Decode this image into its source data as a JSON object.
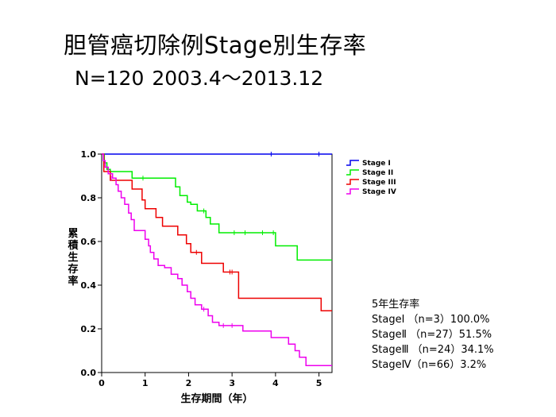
{
  "slide": {
    "title": "胆管癌切除例Stage別生存率",
    "subtitle": "N=120  2003.4～2013.12"
  },
  "summary": {
    "heading": "5年生存率",
    "rows": [
      "StageⅠ （n=3）100.0%",
      "StageⅡ （n=27）51.5%",
      "StageⅢ （n=24）34.1%",
      "StageⅣ（n=66）3.2%"
    ]
  },
  "chart_data": {
    "type": "line",
    "step": true,
    "xlabel": "生存期間（年）",
    "ylabel": "累積生存率",
    "xlim": [
      0,
      5.3
    ],
    "ylim": [
      0,
      1
    ],
    "xticks": [
      0,
      1,
      2,
      3,
      4,
      5
    ],
    "yticks": [
      0.0,
      0.2,
      0.4,
      0.6,
      0.8,
      1.0
    ],
    "xtick_labels": [
      "0",
      "1",
      "2",
      "3",
      "4",
      "5"
    ],
    "ytick_labels": [
      "0.0",
      "0.2",
      "0.4",
      "0.6",
      "0.8",
      "1.0"
    ],
    "grid": false,
    "legend_position": "top-right",
    "series": [
      {
        "name": "Stage I",
        "color": "#0000ee",
        "steps": [
          [
            0,
            1.0
          ],
          [
            5.3,
            1.0
          ]
        ],
        "censored": [
          [
            3.9,
            1.0
          ],
          [
            5.0,
            1.0
          ]
        ]
      },
      {
        "name": "Stage II",
        "color": "#00ee00",
        "steps": [
          [
            0,
            1.0
          ],
          [
            0.06,
            0.96
          ],
          [
            0.12,
            0.93
          ],
          [
            0.2,
            0.92
          ],
          [
            0.7,
            0.89
          ],
          [
            1.7,
            0.85
          ],
          [
            1.8,
            0.81
          ],
          [
            1.97,
            0.78
          ],
          [
            2.05,
            0.77
          ],
          [
            2.2,
            0.74
          ],
          [
            2.4,
            0.71
          ],
          [
            2.5,
            0.68
          ],
          [
            2.7,
            0.64
          ],
          [
            4.0,
            0.58
          ],
          [
            4.5,
            0.515
          ],
          [
            5.3,
            0.515
          ]
        ],
        "censored": [
          [
            0.95,
            0.89
          ],
          [
            2.35,
            0.74
          ],
          [
            3.05,
            0.64
          ],
          [
            3.3,
            0.64
          ],
          [
            3.7,
            0.64
          ],
          [
            3.95,
            0.64
          ]
        ]
      },
      {
        "name": "Stage III",
        "color": "#ee0000",
        "steps": [
          [
            0,
            1.0
          ],
          [
            0.05,
            0.92
          ],
          [
            0.2,
            0.88
          ],
          [
            0.7,
            0.84
          ],
          [
            0.93,
            0.79
          ],
          [
            1.0,
            0.75
          ],
          [
            1.25,
            0.71
          ],
          [
            1.4,
            0.67
          ],
          [
            1.75,
            0.63
          ],
          [
            1.95,
            0.59
          ],
          [
            2.05,
            0.55
          ],
          [
            2.3,
            0.5
          ],
          [
            2.8,
            0.46
          ],
          [
            3.15,
            0.34
          ],
          [
            5.05,
            0.283
          ],
          [
            5.3,
            0.283
          ]
        ],
        "censored": [
          [
            2.18,
            0.55
          ],
          [
            2.95,
            0.46
          ],
          [
            3.0,
            0.46
          ]
        ]
      },
      {
        "name": "Stage IV",
        "color": "#ee00ee",
        "steps": [
          [
            0,
            1.0
          ],
          [
            0.04,
            0.97
          ],
          [
            0.08,
            0.94
          ],
          [
            0.15,
            0.91
          ],
          [
            0.25,
            0.89
          ],
          [
            0.33,
            0.86
          ],
          [
            0.38,
            0.83
          ],
          [
            0.45,
            0.8
          ],
          [
            0.53,
            0.77
          ],
          [
            0.62,
            0.73
          ],
          [
            0.68,
            0.7
          ],
          [
            0.75,
            0.65
          ],
          [
            1.0,
            0.61
          ],
          [
            1.08,
            0.58
          ],
          [
            1.12,
            0.55
          ],
          [
            1.2,
            0.52
          ],
          [
            1.3,
            0.49
          ],
          [
            1.45,
            0.48
          ],
          [
            1.6,
            0.45
          ],
          [
            1.75,
            0.43
          ],
          [
            1.85,
            0.4
          ],
          [
            1.97,
            0.37
          ],
          [
            2.05,
            0.34
          ],
          [
            2.15,
            0.31
          ],
          [
            2.3,
            0.29
          ],
          [
            2.45,
            0.26
          ],
          [
            2.55,
            0.23
          ],
          [
            2.7,
            0.215
          ],
          [
            3.25,
            0.19
          ],
          [
            3.9,
            0.16
          ],
          [
            4.3,
            0.13
          ],
          [
            4.45,
            0.1
          ],
          [
            4.55,
            0.07
          ],
          [
            4.7,
            0.032
          ],
          [
            5.3,
            0.032
          ]
        ],
        "censored": [
          [
            0.22,
            0.89
          ],
          [
            2.35,
            0.29
          ],
          [
            2.8,
            0.215
          ],
          [
            3.0,
            0.215
          ]
        ]
      }
    ]
  }
}
